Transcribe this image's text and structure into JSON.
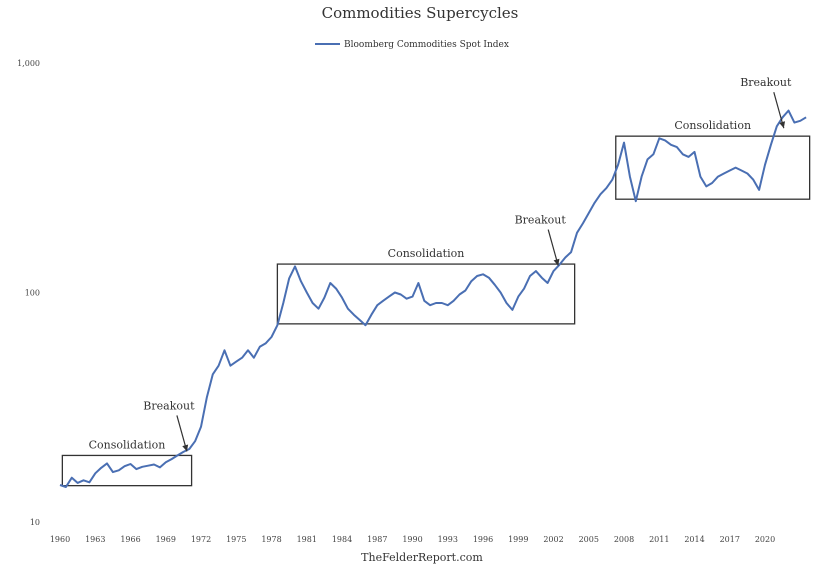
{
  "chart_data": {
    "type": "line",
    "title": "Commodities Supercycles",
    "source": "TheFelderReport.com",
    "y_scale": "log",
    "ylim": [
      10,
      1000
    ],
    "xlim": [
      1960,
      2024
    ],
    "yticks": [
      {
        "value": 10,
        "label": "10"
      },
      {
        "value": 100,
        "label": "100"
      },
      {
        "value": 1000,
        "label": "1,000"
      }
    ],
    "xticks": [
      1960,
      1963,
      1966,
      1969,
      1972,
      1975,
      1978,
      1981,
      1984,
      1987,
      1990,
      1993,
      1996,
      1999,
      2002,
      2005,
      2008,
      2011,
      2014,
      2017,
      2020
    ],
    "legend": "top-center",
    "grid": false,
    "series": [
      {
        "name": "Bloomberg Commodities Spot Index",
        "color": "#4a6fb3",
        "x": [
          1960,
          1960.5,
          1961,
          1961.5,
          1962,
          1962.5,
          1963,
          1963.5,
          1964,
          1964.5,
          1965,
          1965.5,
          1966,
          1966.5,
          1967,
          1967.5,
          1968,
          1968.5,
          1969,
          1969.5,
          1970,
          1970.5,
          1971,
          1971.5,
          1972,
          1972.5,
          1973,
          1973.5,
          1974,
          1974.5,
          1975,
          1975.5,
          1976,
          1976.5,
          1977,
          1977.5,
          1978,
          1978.5,
          1979,
          1979.5,
          1980,
          1980.5,
          1981,
          1981.5,
          1982,
          1982.5,
          1983,
          1983.5,
          1984,
          1984.5,
          1985,
          1985.5,
          1986,
          1986.5,
          1987,
          1987.5,
          1988,
          1988.5,
          1989,
          1989.5,
          1990,
          1990.5,
          1991,
          1991.5,
          1992,
          1992.5,
          1993,
          1993.5,
          1994,
          1994.5,
          1995,
          1995.5,
          1996,
          1996.5,
          1997,
          1997.5,
          1998,
          1998.5,
          1999,
          1999.5,
          2000,
          2000.5,
          2001,
          2001.5,
          2002,
          2002.5,
          2003,
          2003.5,
          2004,
          2004.5,
          2005,
          2005.5,
          2006,
          2006.5,
          2007,
          2007.5,
          2008,
          2008.5,
          2009,
          2009.5,
          2010,
          2010.5,
          2011,
          2011.5,
          2012,
          2012.5,
          2013,
          2013.5,
          2014,
          2014.5,
          2015,
          2015.5,
          2016,
          2016.5,
          2017,
          2017.5,
          2018,
          2018.5,
          2019,
          2019.5,
          2020,
          2020.5,
          2021,
          2021.5,
          2022,
          2022.5,
          2023,
          2023.5
        ],
        "y": [
          14.5,
          14.2,
          15.6,
          14.8,
          15.2,
          14.9,
          16.3,
          17.2,
          18.0,
          16.5,
          16.8,
          17.5,
          17.9,
          17.0,
          17.4,
          17.6,
          17.8,
          17.3,
          18.2,
          18.8,
          19.5,
          20.2,
          20.8,
          22.5,
          26.0,
          35.0,
          44.0,
          48.0,
          56.0,
          48.0,
          50.0,
          52.0,
          56.0,
          52.0,
          58.0,
          60.0,
          64.0,
          72.0,
          90.0,
          115.0,
          130.0,
          112.0,
          100.0,
          90.0,
          85.0,
          95.0,
          110.0,
          104.0,
          95.0,
          85.0,
          80.0,
          76.0,
          72.0,
          80.0,
          88.0,
          92.0,
          96.0,
          100.0,
          98.0,
          94.0,
          96.0,
          110.0,
          92.0,
          88.0,
          90.0,
          90.0,
          88.0,
          92.0,
          98.0,
          102.0,
          112.0,
          118.0,
          120.0,
          116.0,
          108.0,
          100.0,
          90.0,
          84.0,
          96.0,
          104.0,
          118.0,
          124.0,
          116.0,
          110.0,
          124.0,
          132.0,
          142.0,
          150.0,
          182.0,
          200.0,
          222.0,
          246.0,
          268.0,
          285.0,
          310.0,
          360.0,
          450.0,
          320.0,
          250.0,
          320.0,
          380.0,
          400.0,
          470.0,
          460.0,
          440.0,
          430.0,
          400.0,
          390.0,
          410.0,
          320.0,
          290.0,
          300.0,
          320.0,
          330.0,
          340.0,
          350.0,
          340.0,
          330.0,
          310.0,
          280.0,
          360.0,
          440.0,
          530.0,
          580.0,
          620.0,
          550.0,
          560.0,
          580.0
        ]
      }
    ],
    "annotations": [
      {
        "text": "Consolidation",
        "box_x": [
          1960.2,
          1971.2
        ],
        "box_y": [
          14.4,
          19.5
        ]
      },
      {
        "text": "Breakout",
        "arrow_to": [
          1970.8,
          20.3
        ]
      },
      {
        "text": "Consolidation",
        "box_x": [
          1978.5,
          2003.8
        ],
        "box_y": [
          73.0,
          133.0
        ]
      },
      {
        "text": "Breakout",
        "arrow_to": [
          2002.4,
          131.0
        ]
      },
      {
        "text": "Consolidation",
        "box_x": [
          2007.3,
          2023.8
        ],
        "box_y": [
          255.0,
          480.0
        ]
      },
      {
        "text": "Breakout",
        "arrow_to": [
          2021.6,
          520.0
        ]
      }
    ]
  }
}
